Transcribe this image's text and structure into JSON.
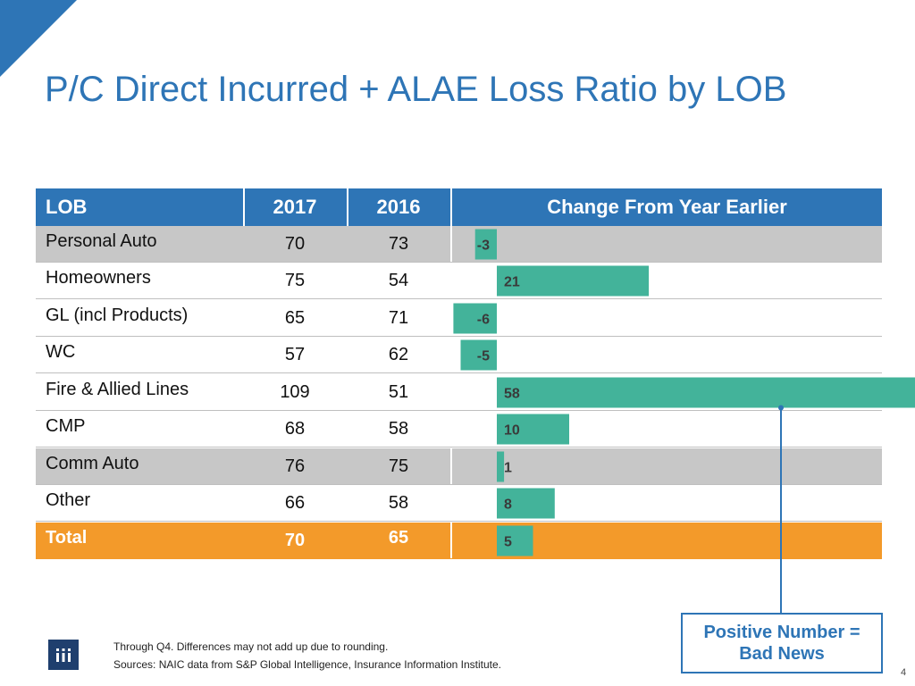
{
  "title": "P/C Direct Incurred + ALAE Loss Ratio by LOB",
  "colors": {
    "accent": "#2e75b6",
    "bar": "#43b39a",
    "total": "#f39a2a",
    "shaded": "#c7c7c7"
  },
  "table": {
    "headers": {
      "lob": "LOB",
      "y2017": "2017",
      "y2016": "2016",
      "change": "Change From Year Earlier"
    },
    "rows": [
      {
        "lob": "Personal Auto",
        "y2017": "70",
        "y2016": "73",
        "shaded": true,
        "total": false
      },
      {
        "lob": "Homeowners",
        "y2017": "75",
        "y2016": "54",
        "shaded": false,
        "total": false
      },
      {
        "lob": "GL (incl Products)",
        "y2017": "65",
        "y2016": "71",
        "shaded": false,
        "total": false
      },
      {
        "lob": "WC",
        "y2017": "57",
        "y2016": "62",
        "shaded": false,
        "total": false
      },
      {
        "lob": "Fire & Allied Lines",
        "y2017": "109",
        "y2016": "51",
        "shaded": false,
        "total": false
      },
      {
        "lob": "CMP",
        "y2017": "68",
        "y2016": "58",
        "shaded": false,
        "total": false
      },
      {
        "lob": "Comm Auto",
        "y2017": "76",
        "y2016": "75",
        "shaded": true,
        "total": false
      },
      {
        "lob": "Other",
        "y2017": "66",
        "y2016": "58",
        "shaded": false,
        "total": false
      },
      {
        "lob": "Total",
        "y2017": "70",
        "y2016": "65",
        "shaded": false,
        "total": true
      }
    ]
  },
  "chart_data": {
    "type": "bar",
    "orientation": "horizontal",
    "title": "Change From Year Earlier",
    "categories": [
      "Personal Auto",
      "Homeowners",
      "GL (incl Products)",
      "WC",
      "Fire & Allied Lines",
      "CMP",
      "Comm Auto",
      "Other",
      "Total"
    ],
    "values": [
      -3,
      21,
      -6,
      -5,
      58,
      10,
      1,
      8,
      5
    ],
    "xlim": [
      -6,
      58
    ]
  },
  "callout": {
    "line1": "Positive Number =",
    "line2": "Bad News"
  },
  "footer": {
    "note": "Through Q4. Differences may not add up due to rounding.",
    "sources": "Sources: NAIC data from S&P Global Intelligence, Insurance Information Institute."
  },
  "page_number": "4"
}
